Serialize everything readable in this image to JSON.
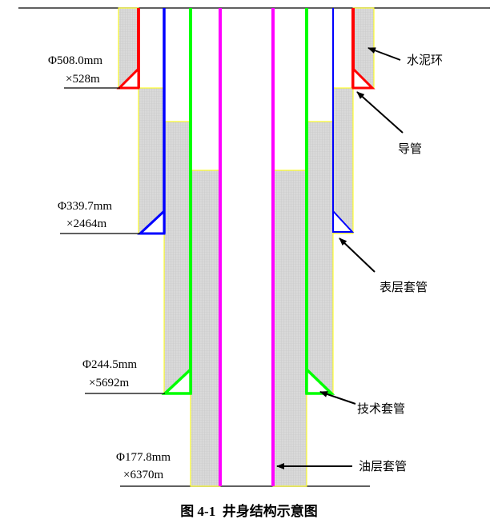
{
  "figure": {
    "caption": "图 4-1  井身结构示意图"
  },
  "casings": [
    {
      "id": "conductor",
      "size_label": "Φ508.0mm",
      "depth_label": "×528m",
      "name": "导管",
      "color": "#ff0000"
    },
    {
      "id": "surface",
      "size_label": "Φ339.7mm",
      "depth_label": "×2464m",
      "name": "表层套管",
      "color": "#0000ff"
    },
    {
      "id": "intermediate",
      "size_label": "Φ244.5mm",
      "depth_label": "×5692m",
      "name": "技术套管",
      "color": "#00ff00"
    },
    {
      "id": "production",
      "size_label": "Φ177.8mm",
      "depth_label": "×6370m",
      "name": "油层套管",
      "color": "#ff00ff"
    }
  ],
  "cement": {
    "name": "水泥环",
    "color": "#d3d3d3",
    "edge_color": "#ffff00"
  }
}
